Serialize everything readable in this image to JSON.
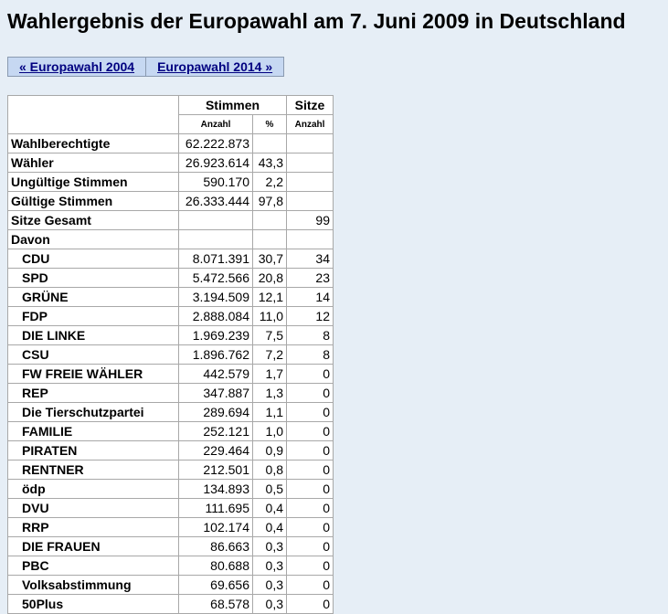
{
  "page": {
    "title": "Wahlergebnis der Europawahl am 7. Juni 2009 in Deutschland"
  },
  "nav": {
    "prev_label": "« Europawahl 2004",
    "next_label": "Europawahl 2014 »"
  },
  "table": {
    "header_stimmen": "Stimmen",
    "header_sitze": "Sitze",
    "sub_anzahl": "Anzahl",
    "sub_percent": "%",
    "sub_sitze_anzahl": "Anzahl",
    "summary_rows": [
      {
        "label": "Wahlberechtigte",
        "anzahl": "62.222.873",
        "percent": "",
        "sitze": ""
      },
      {
        "label": "Wähler",
        "anzahl": "26.923.614",
        "percent": "43,3",
        "sitze": ""
      },
      {
        "label": "Ungültige Stimmen",
        "anzahl": "590.170",
        "percent": "2,2",
        "sitze": ""
      },
      {
        "label": "Gültige Stimmen",
        "anzahl": "26.333.444",
        "percent": "97,8",
        "sitze": ""
      },
      {
        "label": "Sitze Gesamt",
        "anzahl": "",
        "percent": "",
        "sitze": "99"
      },
      {
        "label": "Davon",
        "anzahl": "",
        "percent": "",
        "sitze": ""
      }
    ],
    "party_rows": [
      {
        "label": "CDU",
        "anzahl": "8.071.391",
        "percent": "30,7",
        "sitze": "34"
      },
      {
        "label": "SPD",
        "anzahl": "5.472.566",
        "percent": "20,8",
        "sitze": "23"
      },
      {
        "label": "GRÜNE",
        "anzahl": "3.194.509",
        "percent": "12,1",
        "sitze": "14"
      },
      {
        "label": "FDP",
        "anzahl": "2.888.084",
        "percent": "11,0",
        "sitze": "12"
      },
      {
        "label": "DIE LINKE",
        "anzahl": "1.969.239",
        "percent": "7,5",
        "sitze": "8"
      },
      {
        "label": "CSU",
        "anzahl": "1.896.762",
        "percent": "7,2",
        "sitze": "8"
      },
      {
        "label": "FW FREIE WÄHLER",
        "anzahl": "442.579",
        "percent": "1,7",
        "sitze": "0"
      },
      {
        "label": "REP",
        "anzahl": "347.887",
        "percent": "1,3",
        "sitze": "0"
      },
      {
        "label": "Die Tierschutzpartei",
        "anzahl": "289.694",
        "percent": "1,1",
        "sitze": "0"
      },
      {
        "label": "FAMILIE",
        "anzahl": "252.121",
        "percent": "1,0",
        "sitze": "0"
      },
      {
        "label": "PIRATEN",
        "anzahl": "229.464",
        "percent": "0,9",
        "sitze": "0"
      },
      {
        "label": "RENTNER",
        "anzahl": "212.501",
        "percent": "0,8",
        "sitze": "0"
      },
      {
        "label": "ödp",
        "anzahl": "134.893",
        "percent": "0,5",
        "sitze": "0"
      },
      {
        "label": "DVU",
        "anzahl": "111.695",
        "percent": "0,4",
        "sitze": "0"
      },
      {
        "label": "RRP",
        "anzahl": "102.174",
        "percent": "0,4",
        "sitze": "0"
      },
      {
        "label": "DIE FRAUEN",
        "anzahl": "86.663",
        "percent": "0,3",
        "sitze": "0"
      },
      {
        "label": "PBC",
        "anzahl": "80.688",
        "percent": "0,3",
        "sitze": "0"
      },
      {
        "label": "Volksabstimmung",
        "anzahl": "69.656",
        "percent": "0,3",
        "sitze": "0"
      },
      {
        "label": "50Plus",
        "anzahl": "68.578",
        "percent": "0,3",
        "sitze": "0"
      }
    ]
  }
}
